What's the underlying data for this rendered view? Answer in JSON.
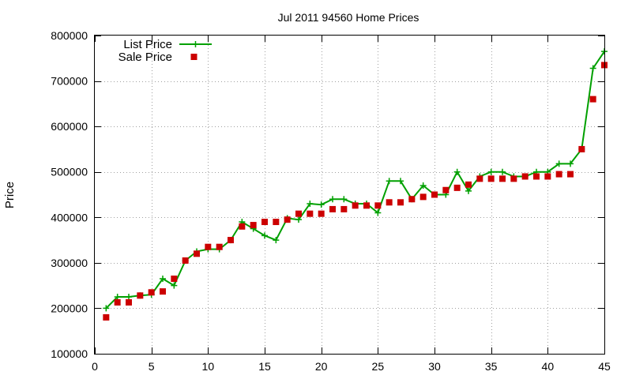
{
  "chart_data": {
    "type": "line",
    "title": "Jul 2011 94560 Home Prices",
    "ylabel": "Price",
    "xlabel": "",
    "xlim": [
      0,
      45
    ],
    "ylim": [
      100000,
      800000
    ],
    "x_ticks": [
      0,
      5,
      10,
      15,
      20,
      25,
      30,
      35,
      40,
      45
    ],
    "y_ticks": [
      100000,
      200000,
      300000,
      400000,
      500000,
      600000,
      700000,
      800000
    ],
    "grid": true,
    "legend_position": "top-left",
    "x": [
      1,
      2,
      3,
      4,
      5,
      6,
      7,
      8,
      9,
      10,
      11,
      12,
      13,
      14,
      15,
      16,
      17,
      18,
      19,
      20,
      21,
      22,
      23,
      24,
      25,
      26,
      27,
      28,
      29,
      30,
      31,
      32,
      33,
      34,
      35,
      36,
      37,
      38,
      39,
      40,
      41,
      42,
      43,
      44,
      45
    ],
    "series": [
      {
        "name": "List Price",
        "style": "line-cross",
        "color": "#00a000",
        "values": [
          200000,
          225000,
          225000,
          228000,
          230000,
          265000,
          250000,
          305000,
          325000,
          330000,
          330000,
          350000,
          390000,
          375000,
          360000,
          350000,
          398000,
          395000,
          430000,
          428000,
          440000,
          440000,
          430000,
          430000,
          410000,
          480000,
          480000,
          440000,
          470000,
          450000,
          450000,
          500000,
          458000,
          490000,
          500000,
          500000,
          490000,
          490000,
          500000,
          500000,
          518000,
          518000,
          550000,
          728000,
          765000
        ]
      },
      {
        "name": "Sale Price",
        "style": "square",
        "color": "#cc0000",
        "values": [
          180000,
          213000,
          213000,
          228000,
          235000,
          237000,
          265000,
          305000,
          320000,
          335000,
          335000,
          350000,
          380000,
          383000,
          390000,
          390000,
          395000,
          408000,
          408000,
          408000,
          418000,
          418000,
          426000,
          426000,
          426000,
          433000,
          433000,
          440000,
          445000,
          450000,
          460000,
          465000,
          472000,
          485000,
          485000,
          485000,
          485000,
          490000,
          490000,
          490000,
          495000,
          495000,
          550000,
          660000,
          735000
        ]
      }
    ]
  }
}
